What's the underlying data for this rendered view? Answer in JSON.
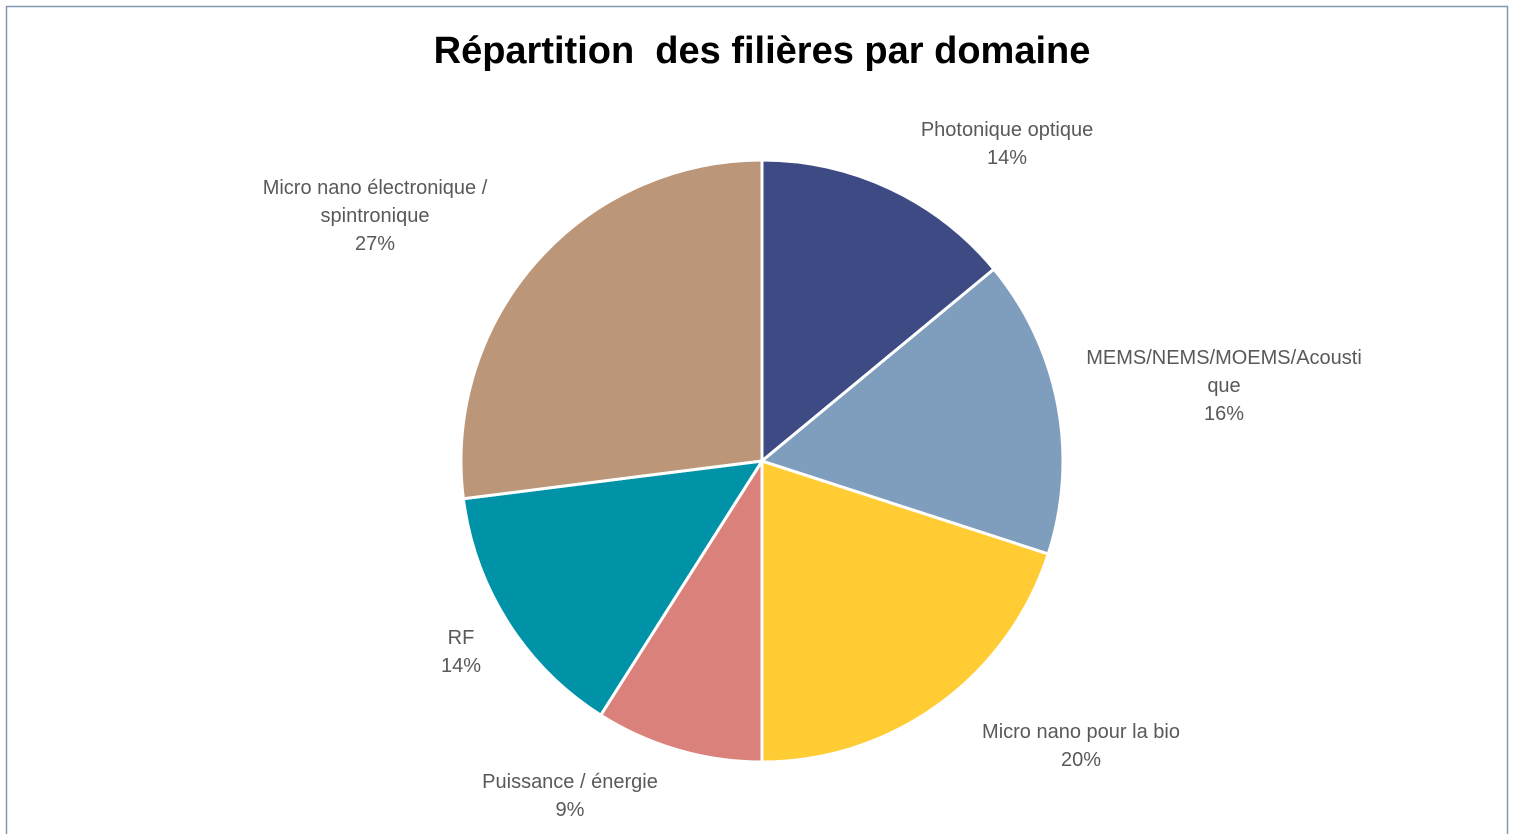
{
  "chart_data": {
    "type": "pie",
    "title": "Répartition  des filières par domaine",
    "categories": [
      "Photonique optique",
      "MEMS/NEMS/MOEMS/Acoustique",
      "Micro nano pour la bio",
      "Puissance / énergie",
      "RF",
      "Micro nano électronique / spintronique"
    ],
    "values": [
      14,
      16,
      20,
      9,
      14,
      27
    ],
    "value_labels": [
      "14%",
      "16%",
      "20%",
      "9%",
      "14%",
      "27%"
    ],
    "colors": [
      "#3d4a84",
      "#7f9dbd",
      "#ffcc33",
      "#d9817a",
      "#0093a8",
      "#bc9678"
    ]
  }
}
